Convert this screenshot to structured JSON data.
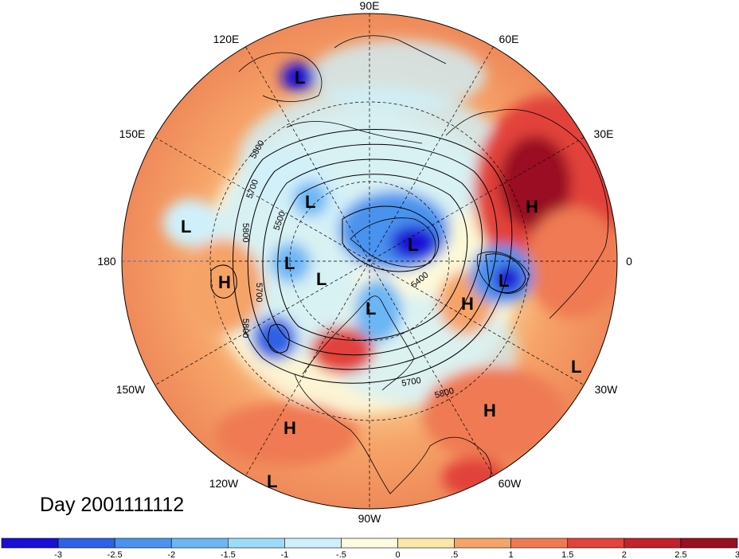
{
  "title_text": "Day 2001111112",
  "longitude_labels": [
    {
      "text": "90E",
      "key": "n"
    },
    {
      "text": "60E",
      "key": "ne1"
    },
    {
      "text": "120E",
      "key": "nw1"
    },
    {
      "text": "30E",
      "key": "ne2"
    },
    {
      "text": "150E",
      "key": "nw2"
    },
    {
      "text": "0",
      "key": "e"
    },
    {
      "text": "180",
      "key": "w"
    },
    {
      "text": "30W",
      "key": "se2"
    },
    {
      "text": "150W",
      "key": "sw2"
    },
    {
      "text": "60W",
      "key": "se1"
    },
    {
      "text": "120W",
      "key": "sw1"
    },
    {
      "text": "90W",
      "key": "s"
    }
  ],
  "pressure_centers": [
    {
      "type": "L",
      "key": "c1"
    },
    {
      "type": "L",
      "key": "c2"
    },
    {
      "type": "L",
      "key": "c3"
    },
    {
      "type": "L",
      "key": "c4"
    },
    {
      "type": "L",
      "key": "c5"
    },
    {
      "type": "L",
      "key": "c6"
    },
    {
      "type": "L",
      "key": "c7"
    },
    {
      "type": "L",
      "key": "c8"
    },
    {
      "type": "L",
      "key": "c9"
    },
    {
      "type": "L",
      "key": "c10"
    },
    {
      "type": "H",
      "key": "c11"
    },
    {
      "type": "H",
      "key": "c12"
    },
    {
      "type": "H",
      "key": "c13"
    },
    {
      "type": "H",
      "key": "c14"
    },
    {
      "type": "H",
      "key": "c15"
    }
  ],
  "contour_labels": [
    "5800",
    "5700",
    "5500",
    "5800",
    "5700",
    "5800",
    "5400",
    "5700",
    "5800"
  ],
  "colorbar": {
    "colors": [
      "#1a0fd6",
      "#2e62e6",
      "#4a93ee",
      "#6cb6f5",
      "#9cdcf8",
      "#cff0fa",
      "#fdfbe0",
      "#fbe7a8",
      "#f6a368",
      "#ef7a52",
      "#e2433a",
      "#c4212e",
      "#9a0f22"
    ],
    "ticks": [
      "-3",
      "-2.5",
      "-2",
      "-1.5",
      "-1",
      "-.5",
      "0",
      ".5",
      "1",
      "1.5",
      "2",
      "2.5",
      "3"
    ]
  }
}
